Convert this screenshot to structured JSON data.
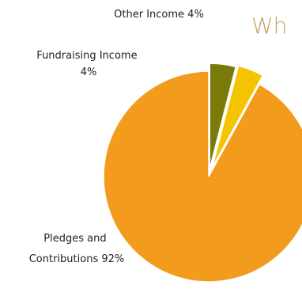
{
  "heading_fragment": "Wh",
  "colors": {
    "heading": "#c8a064",
    "edge": "#ffffff"
  },
  "chart_data": {
    "type": "pie",
    "title": "",
    "exploded": true,
    "slices": [
      {
        "label": "Pledges and Contributions 92%",
        "label_lines": [
          "Pledges and",
          "Contributions 92%"
        ],
        "value": 92,
        "color": "#f29b1d"
      },
      {
        "label": "Fundraising Income 4%",
        "label_lines": [
          "Fundraising Income",
          "4%"
        ],
        "value": 4,
        "color": "#f5c400"
      },
      {
        "label": "Other Income 4%",
        "label_lines": [
          "Other Income 4%"
        ],
        "value": 4,
        "color": "#7a7a0a"
      }
    ]
  }
}
